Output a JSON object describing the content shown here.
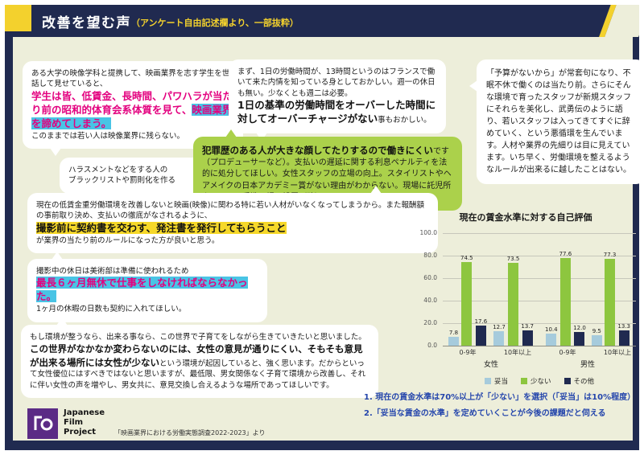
{
  "header": {
    "title": "改善を望む声",
    "subtitle": "（アンケート自由記述欄より、一部抜粋）"
  },
  "bubbles": {
    "university": {
      "s1": "ある大学の映像学科と提携して、映画業界を志す学生を世話して見せていると、",
      "s2": "学生は皆、低賃金、長時間、パワハラが当たり前の昭和的体育会系体質を見て、",
      "s3": "映画業界を諦めてしまう。",
      "s4": "このままでは若い人は映像業界に残らない。"
    },
    "harassment": {
      "s1": "ハラスメントなどをする人の",
      "s2": "ブラックリストや罰則化を作る"
    },
    "hours": {
      "s1": "まず、1日の労働時間が、13時間というのはフランスで働いて来た内情を知っている身としておかしい。週一の休日も無い。少なくとも週二は必要。",
      "s2": "1日の基準の労働時間をオーバーした時間に対してオーバーチャージがない",
      "s3": "事もおかしい。"
    },
    "criminal": {
      "s1": "犯罪歴のある人が大きな顔してたりするので働きにくい",
      "s2": "です（プロデューサーなど）。支払いの遅延に関する利息ペナルティを法的に処分してほしい。女性スタッフの立場の向上。スタイリストやヘアメイクの日本アカデミー賞がない理由がわからない。現場に託児所やトイレ、手洗い場の設置（略）。"
    },
    "budget": {
      "s1": "「予算がないから」が常套句になり、不眠不休で働くのは当たり前。さらにそんな環境で育ったスタッフが新規スタッフにそれらを美化し、武勇伝のように語り、若いスタッフは入ってきてすぐに辞めていく、という悪循環を生んでいます。人材や業界の先細りは目に見えています。いち早く、労働環境を整えるようなルールが出来るに越したことはない。"
    },
    "contract": {
      "s1": "現在の低賃金重労働環境を改善しないと映画(映像)に関わる特に若い人材がいなくなってしまうから。また報酬額の事前取り決め、支払いの徹底がなされるように、",
      "s2": "撮影前に契約書を交わす、発注書を発行してもらうこと",
      "s3": "が業界の当たり前のルールになった方が良いと思う。"
    },
    "holiday": {
      "s1": "撮影中の休日は美術部は準備に使われるため",
      "s2": "最長６ヶ月無休で仕事をしなければならなかった。",
      "s3": "1ヶ月の休暇の日数も契約に入れてほしい。"
    },
    "women": {
      "s1": "もし環境が整うなら、出来る事なら、この世界で子育てをしながら生きていきたいと思いました。",
      "s2": "この世界がなかなか変わらないのには、女性の意見が通りにくい、そもそも意見が出来る場所には女性が少ない",
      "s3": "という環境が起因していると、強く思います。だからといって女性優位にはすべきではないと思いますが、最低限、男女関係なく子育て環境から改善し、それに伴い女性の声を増やし、男女共に、意見交換し合えるような場所であってほしいです。"
    }
  },
  "chart_data": {
    "type": "bar",
    "title": "現在の賃金水準に対する自己評価",
    "categories": [
      "0-9年",
      "10年以上",
      "0-9年",
      "10年以上"
    ],
    "category_groups": [
      {
        "label": "女性",
        "count": 2
      },
      {
        "label": "男性",
        "count": 2
      }
    ],
    "series": [
      {
        "name": "妥当",
        "color": "#a6cbdc",
        "values": [
          7.8,
          12.7,
          10.4,
          9.5
        ]
      },
      {
        "name": "少ない",
        "color": "#8dc63f",
        "values": [
          74.5,
          73.5,
          77.6,
          77.3
        ]
      },
      {
        "name": "その他",
        "color": "#202a50",
        "values": [
          17.6,
          13.7,
          12.0,
          13.3
        ]
      }
    ],
    "ylim": [
      0,
      100
    ],
    "yticks": [
      100,
      80,
      60,
      40,
      20,
      0
    ],
    "grid": true,
    "legend_position": "bottom"
  },
  "findings": {
    "line1": "1. 現在の賃金水準は70%以上が「少ない」を選択（「妥当」は10%程度）",
    "line2": "2.「妥当な賃金の水準」を定めていくことが今後の課題だと伺える"
  },
  "footer": {
    "logo_lines": [
      "Japanese",
      "Film",
      "Project"
    ],
    "source": "「映画業界における労働実態調査2022-2023」より"
  },
  "colors": {
    "navy": "#202a50",
    "accent_yellow": "#f3d12d",
    "panel_background": "#edeeda",
    "emphasis_magenta": "#e3007f",
    "highlight_cyan": "#49c4e5",
    "highlight_yellow": "#f6d829",
    "green_bubble": "#abd14b",
    "findings_blue": "#2546ac",
    "logo_purple": "#5b2b85"
  }
}
